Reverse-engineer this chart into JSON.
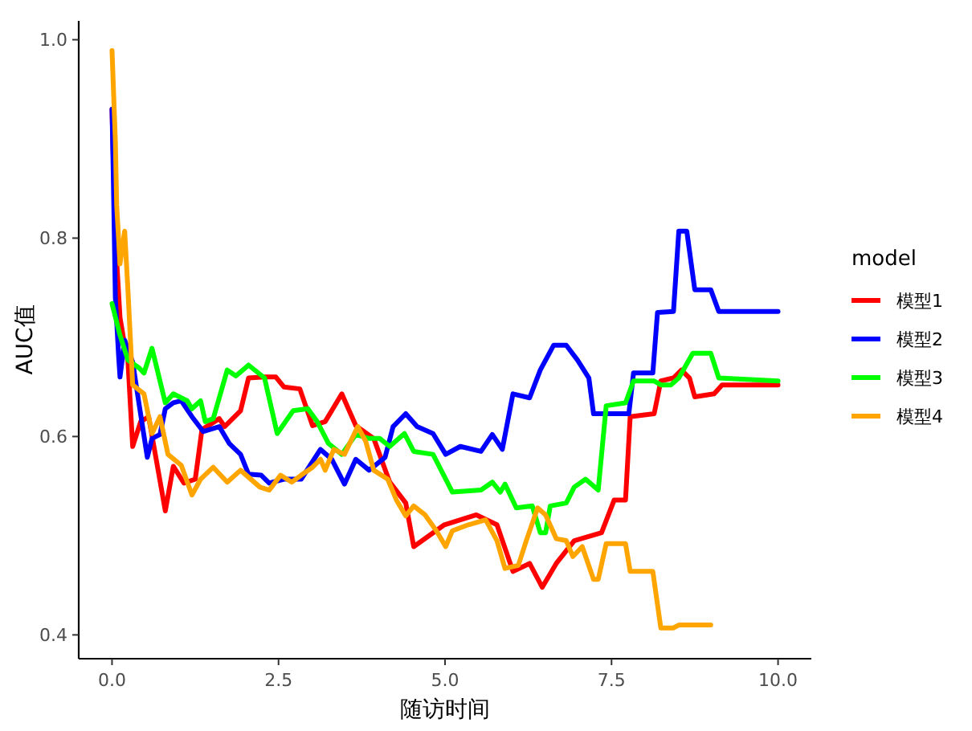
{
  "chart_data": {
    "type": "line",
    "xlabel": "随访时间",
    "ylabel": "AUC值",
    "legend_title": "model",
    "legend": "right",
    "grid": false,
    "line_style": "solid",
    "marker": "none",
    "xlim": [
      -0.5,
      10.5
    ],
    "ylim": [
      0.376,
      1.019
    ],
    "xticks": [
      {
        "value": 0,
        "label": "0.0"
      },
      {
        "value": 2.5,
        "label": "2.5"
      },
      {
        "value": 5,
        "label": "5.0"
      },
      {
        "value": 7.5,
        "label": "7.5"
      },
      {
        "value": 10,
        "label": "10.0"
      }
    ],
    "yticks": [
      {
        "value": 0.4,
        "label": "0.4"
      },
      {
        "value": 0.6,
        "label": "0.6"
      },
      {
        "value": 0.8,
        "label": "0.8"
      },
      {
        "value": 1,
        "label": "1.0"
      }
    ],
    "series": [
      {
        "name": "模型1",
        "color": "#ff0000",
        "x": [
          0,
          0.05,
          0.12,
          0.17,
          0.24,
          0.31,
          0.43,
          0.55,
          0.8,
          0.92,
          1.08,
          1.25,
          1.35,
          1.61,
          1.69,
          1.93,
          2.05,
          2.29,
          2.46,
          2.58,
          2.82,
          3.01,
          3.2,
          3.45,
          3.66,
          3.93,
          4.17,
          4.41,
          4.53,
          4.99,
          5.47,
          5.78,
          6.02,
          6.27,
          6.46,
          6.67,
          6.94,
          7.35,
          7.54,
          7.71,
          7.78,
          8.14,
          8.24,
          8.43,
          8.55,
          8.67,
          8.75,
          9.04,
          9.16,
          10.0
        ],
        "values": [
          0.93,
          0.8,
          0.72,
          0.7,
          0.675,
          0.59,
          0.615,
          0.62,
          0.525,
          0.57,
          0.553,
          0.557,
          0.607,
          0.618,
          0.61,
          0.626,
          0.659,
          0.66,
          0.66,
          0.65,
          0.648,
          0.611,
          0.615,
          0.643,
          0.611,
          0.598,
          0.554,
          0.533,
          0.489,
          0.511,
          0.521,
          0.511,
          0.464,
          0.472,
          0.448,
          0.472,
          0.495,
          0.503,
          0.536,
          0.536,
          0.62,
          0.623,
          0.656,
          0.659,
          0.667,
          0.659,
          0.64,
          0.643,
          0.652,
          0.652
        ]
      },
      {
        "name": "模型2",
        "color": "#0000ff",
        "x": [
          0,
          0.02,
          0.05,
          0.1,
          0.12,
          0.19,
          0.31,
          0.41,
          0.53,
          0.6,
          0.72,
          0.8,
          0.92,
          1.04,
          1.2,
          1.37,
          1.61,
          1.76,
          1.93,
          2.05,
          2.24,
          2.36,
          2.58,
          2.84,
          3.13,
          3.3,
          3.49,
          3.66,
          3.86,
          4.1,
          4.22,
          4.41,
          4.58,
          4.82,
          5.01,
          5.23,
          5.54,
          5.71,
          5.86,
          6.02,
          6.27,
          6.43,
          6.63,
          6.82,
          6.99,
          7.16,
          7.23,
          7.76,
          7.83,
          8.12,
          8.19,
          8.43,
          8.51,
          8.63,
          8.75,
          8.99,
          9.11,
          10.0
        ],
        "values": [
          0.93,
          0.86,
          0.74,
          0.68,
          0.66,
          0.697,
          0.675,
          0.631,
          0.579,
          0.598,
          0.602,
          0.628,
          0.634,
          0.636,
          0.62,
          0.605,
          0.61,
          0.593,
          0.582,
          0.562,
          0.561,
          0.553,
          0.557,
          0.557,
          0.587,
          0.577,
          0.552,
          0.577,
          0.566,
          0.579,
          0.61,
          0.623,
          0.61,
          0.603,
          0.582,
          0.59,
          0.585,
          0.602,
          0.587,
          0.643,
          0.639,
          0.667,
          0.692,
          0.692,
          0.677,
          0.659,
          0.623,
          0.623,
          0.664,
          0.664,
          0.725,
          0.726,
          0.807,
          0.807,
          0.748,
          0.748,
          0.726,
          0.726
        ]
      },
      {
        "name": "模型3",
        "color": "#00ff00",
        "x": [
          0,
          0.12,
          0.24,
          0.41,
          0.48,
          0.6,
          0.8,
          0.92,
          1.13,
          1.2,
          1.33,
          1.4,
          1.52,
          1.73,
          1.86,
          2.05,
          2.29,
          2.48,
          2.72,
          2.94,
          3.08,
          3.25,
          3.45,
          3.66,
          3.86,
          4.02,
          4.17,
          4.39,
          4.53,
          4.82,
          5.11,
          5.54,
          5.71,
          5.83,
          5.9,
          6.07,
          6.31,
          6.43,
          6.51,
          6.58,
          6.82,
          6.94,
          7.11,
          7.3,
          7.42,
          7.71,
          7.83,
          8.14,
          8.24,
          8.39,
          8.51,
          8.72,
          8.99,
          9.11,
          10.0
        ],
        "values": [
          0.734,
          0.702,
          0.677,
          0.669,
          0.664,
          0.689,
          0.634,
          0.643,
          0.636,
          0.628,
          0.636,
          0.615,
          0.618,
          0.667,
          0.661,
          0.672,
          0.659,
          0.603,
          0.626,
          0.628,
          0.615,
          0.593,
          0.582,
          0.602,
          0.598,
          0.598,
          0.59,
          0.603,
          0.585,
          0.582,
          0.544,
          0.546,
          0.554,
          0.544,
          0.552,
          0.528,
          0.53,
          0.503,
          0.503,
          0.53,
          0.533,
          0.549,
          0.557,
          0.546,
          0.631,
          0.634,
          0.656,
          0.656,
          0.652,
          0.652,
          0.659,
          0.684,
          0.684,
          0.659,
          0.656
        ]
      },
      {
        "name": "模型4",
        "color": "#ffa500",
        "x": [
          0,
          0.05,
          0.07,
          0.12,
          0.19,
          0.24,
          0.31,
          0.48,
          0.6,
          0.72,
          0.84,
          1.04,
          1.2,
          1.33,
          1.52,
          1.73,
          1.93,
          2.22,
          2.36,
          2.53,
          2.7,
          2.84,
          3.01,
          3.13,
          3.2,
          3.33,
          3.49,
          3.69,
          3.81,
          3.93,
          4.14,
          4.27,
          4.41,
          4.53,
          4.7,
          4.87,
          5.01,
          5.11,
          5.35,
          5.61,
          5.78,
          5.9,
          6.1,
          6.22,
          6.39,
          6.51,
          6.67,
          6.82,
          6.92,
          7.06,
          7.23,
          7.3,
          7.42,
          7.71,
          7.78,
          8.12,
          8.24,
          8.43,
          8.51,
          8.99
        ],
        "values": [
          0.989,
          0.898,
          0.833,
          0.774,
          0.807,
          0.746,
          0.652,
          0.643,
          0.603,
          0.62,
          0.582,
          0.571,
          0.541,
          0.557,
          0.569,
          0.554,
          0.566,
          0.549,
          0.546,
          0.561,
          0.554,
          0.561,
          0.569,
          0.577,
          0.566,
          0.587,
          0.582,
          0.61,
          0.595,
          0.566,
          0.557,
          0.536,
          0.52,
          0.53,
          0.521,
          0.505,
          0.489,
          0.505,
          0.511,
          0.516,
          0.495,
          0.467,
          0.47,
          0.495,
          0.528,
          0.521,
          0.497,
          0.495,
          0.479,
          0.489,
          0.456,
          0.456,
          0.492,
          0.492,
          0.464,
          0.464,
          0.407,
          0.407,
          0.41,
          0.41
        ]
      }
    ]
  }
}
